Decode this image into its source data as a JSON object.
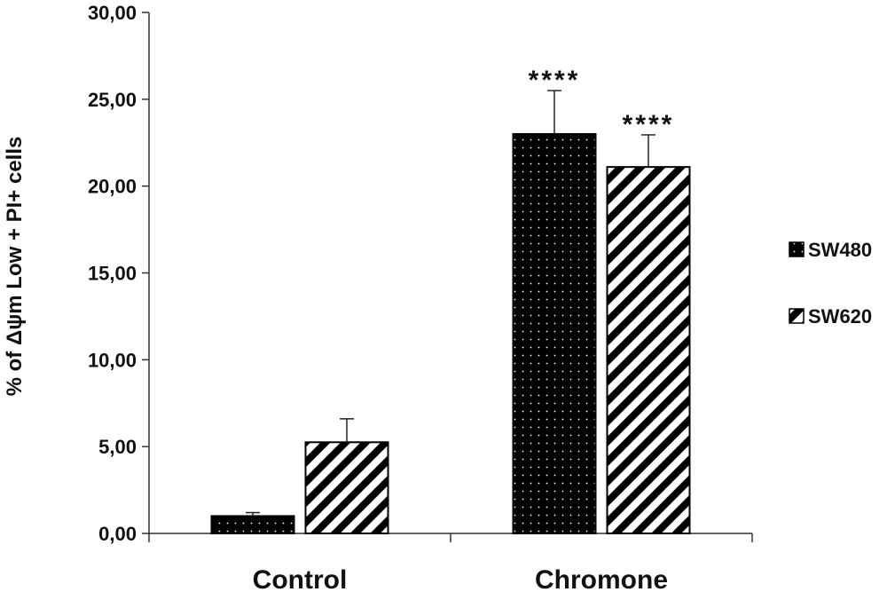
{
  "chart_data": {
    "type": "bar",
    "categories": [
      "Control",
      "Chromone"
    ],
    "series": [
      {
        "name": "SW480",
        "values": [
          1.0,
          23.0
        ],
        "errors": [
          0.2,
          2.5
        ],
        "significance": [
          "",
          "****"
        ],
        "color": "#000000",
        "pattern": "dots"
      },
      {
        "name": "SW620",
        "values": [
          5.25,
          21.1
        ],
        "errors": [
          1.35,
          1.85
        ],
        "significance": [
          "",
          "****"
        ],
        "color": "#000000",
        "pattern": "diagonal-stripes"
      }
    ],
    "yticks": [
      "0,00",
      "5,00",
      "10,00",
      "15,00",
      "20,00",
      "25,00",
      "30,00"
    ],
    "ylim": [
      0,
      30
    ],
    "ylabel": "% of Δψm Low + PI+ cells",
    "xlabel": "",
    "title": "",
    "grid": false,
    "legend_position": "right"
  }
}
